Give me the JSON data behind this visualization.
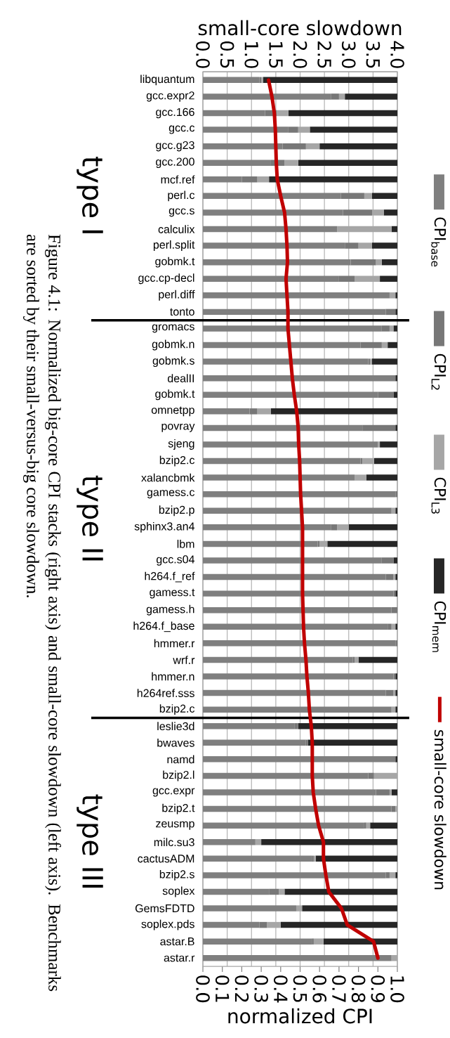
{
  "chart_data": {
    "type": "bar",
    "orientation": "horizontal",
    "stacked": true,
    "xlabel": "normalized CPI",
    "x2label": "small-core slowdown",
    "categories": [
      "libquantum",
      "gcc.expr2",
      "gcc.166",
      "gcc.c",
      "gcc.g23",
      "gcc.200",
      "mcf.ref",
      "perl.c",
      "gcc.s",
      "calculix",
      "perl.split",
      "gobmk.t",
      "gcc.cp-decl",
      "perl.diff",
      "tonto",
      "gromacs",
      "gobmk.n",
      "gobmk.s",
      "dealII",
      "gobmk.t",
      "omnetpp",
      "povray",
      "sjeng",
      "bzip2.c",
      "xalancbmk",
      "gamess.c",
      "bzip2.p",
      "sphinx3.an4",
      "lbm",
      "gcc.s04",
      "h264.f_ref",
      "gamess.t",
      "gamess.h",
      "h264.f_base",
      "hmmer.r",
      "wrf.r",
      "hmmer.n",
      "h264ref.sss",
      "bzip2.c",
      "leslie3d",
      "bwaves",
      "namd",
      "bzip2.l",
      "gcc.expr",
      "bzip2.t",
      "zeusmp",
      "milc.su3",
      "cactusADM",
      "bzip2.s",
      "soplex",
      "GemsFDTD",
      "soplex.pds",
      "astar.B",
      "astar.r"
    ],
    "series": [
      {
        "name": "CPI$_{base}$",
        "color": "#7f7f7f",
        "values": [
          0.29,
          0.66,
          0.32,
          0.44,
          0.41,
          0.35,
          0.2,
          0.71,
          0.72,
          0.69,
          0.73,
          0.76,
          0.7,
          0.96,
          0.94,
          0.92,
          0.81,
          0.85,
          0.99,
          0.9,
          0.24,
          0.82,
          0.9,
          0.81,
          0.78,
          0.99,
          0.97,
          0.66,
          0.59,
          0.92,
          0.94,
          0.98,
          0.97,
          0.95,
          0.99,
          0.77,
          0.98,
          0.94,
          0.97,
          0.47,
          0.53,
          0.99,
          0.85,
          0.89,
          0.97,
          0.83,
          0.27,
          0.56,
          0.94,
          0.34,
          0.48,
          0.29,
          0.56,
          0.97
        ]
      },
      {
        "name": "CPI$_{L2}$",
        "color": "#777777",
        "values": [
          0.01,
          0.04,
          0.06,
          0.05,
          0.12,
          0.07,
          0.08,
          0.12,
          0.15,
          0,
          0.07,
          0.13,
          0.08,
          0,
          0.05,
          0.04,
          0.11,
          0.01,
          0,
          0.08,
          0.04,
          0.17,
          0,
          0.01,
          0,
          0.01,
          0,
          0.03,
          0.01,
          0.06,
          0.04,
          0.01,
          0.03,
          0.02,
          0.01,
          0.01,
          0.01,
          0.04,
          0,
          0.02,
          0.01,
          0,
          0.03,
          0.07,
          0.02,
          0.01,
          0,
          0.01,
          0.02,
          0.05,
          0,
          0.04,
          0.01,
          0
        ]
      },
      {
        "name": "CPI$_{L3}$",
        "color": "#a6a6a6",
        "values": [
          0.01,
          0.03,
          0.06,
          0.06,
          0.07,
          0.07,
          0.06,
          0.04,
          0.06,
          0.28,
          0.07,
          0.03,
          0.13,
          0.03,
          0,
          0.02,
          0.03,
          0.01,
          0,
          0,
          0.07,
          0,
          0.01,
          0.06,
          0.06,
          0,
          0.02,
          0.06,
          0.04,
          0,
          0.01,
          0,
          0,
          0.02,
          0,
          0.02,
          0,
          0.01,
          0.02,
          0,
          0,
          0,
          0.12,
          0.01,
          0.01,
          0.02,
          0.03,
          0.01,
          0.03,
          0.03,
          0.03,
          0.07,
          0.05,
          0.03
        ]
      },
      {
        "name": "CPI$_{mem}$",
        "color": "#262626",
        "values": [
          0.69,
          0.27,
          0.56,
          0.45,
          0.4,
          0.51,
          0.66,
          0.13,
          0.07,
          0.03,
          0.13,
          0.08,
          0.09,
          0.01,
          0.01,
          0.02,
          0.05,
          0.13,
          0.01,
          0.02,
          0.65,
          0.01,
          0.09,
          0.12,
          0.16,
          0,
          0.01,
          0.25,
          0.36,
          0.02,
          0.01,
          0.01,
          0,
          0.01,
          0,
          0.2,
          0.01,
          0.01,
          0.01,
          0.51,
          0.46,
          0.01,
          0,
          0.03,
          0,
          0.14,
          0.7,
          0.42,
          0.01,
          0.58,
          0.49,
          0.6,
          0.38,
          0
        ]
      },
      {
        "name": "small-core slowdown",
        "type": "line",
        "axis": "x2",
        "color": "#c00000",
        "values": [
          1.35,
          1.42,
          1.47,
          1.49,
          1.5,
          1.51,
          1.53,
          1.6,
          1.68,
          1.71,
          1.73,
          1.74,
          1.71,
          1.73,
          1.75,
          1.75,
          1.78,
          1.81,
          1.84,
          1.88,
          1.93,
          1.96,
          1.97,
          1.99,
          2.0,
          2.01,
          2.03,
          2.05,
          2.05,
          2.05,
          2.05,
          2.05,
          2.06,
          2.07,
          2.09,
          2.12,
          2.14,
          2.17,
          2.19,
          2.23,
          2.25,
          2.25,
          2.25,
          2.27,
          2.32,
          2.38,
          2.48,
          2.48,
          2.53,
          2.59,
          2.85,
          2.97,
          3.51,
          3.6
        ]
      }
    ],
    "xlim": [
      0,
      1
    ],
    "xticks": [
      {
        "value": 0,
        "label": "0.0"
      },
      {
        "value": 0.1,
        "label": "0.1"
      },
      {
        "value": 0.2,
        "label": "0.2"
      },
      {
        "value": 0.3,
        "label": "0.3"
      },
      {
        "value": 0.4,
        "label": "0.4"
      },
      {
        "value": 0.5,
        "label": "0.5"
      },
      {
        "value": 0.6,
        "label": "0.6"
      },
      {
        "value": 0.7,
        "label": "0.7"
      },
      {
        "value": 0.8,
        "label": "0.8"
      },
      {
        "value": 0.9,
        "label": "0.9"
      },
      {
        "value": 1,
        "label": "1.0"
      }
    ],
    "x2lim": [
      0,
      4
    ],
    "x2ticks": [
      {
        "value": 0,
        "label": "0.0"
      },
      0.5,
      {
        "value": 1,
        "label": "1.0"
      },
      1.5,
      {
        "value": 2,
        "label": "2.0"
      },
      2.5,
      {
        "value": 3,
        "label": "3.0"
      },
      3.5,
      {
        "value": 4,
        "label": "4.0"
      }
    ],
    "grid": "x",
    "legend": "right",
    "annotations": [
      "type I",
      "type II",
      "type III",
      "Figure 4.1: Normalized big-core CPI stacks (right axis) and small-core slowdown (left axis). Benchmarks are sorted by their small-versus-big core slowdown."
    ]
  }
}
